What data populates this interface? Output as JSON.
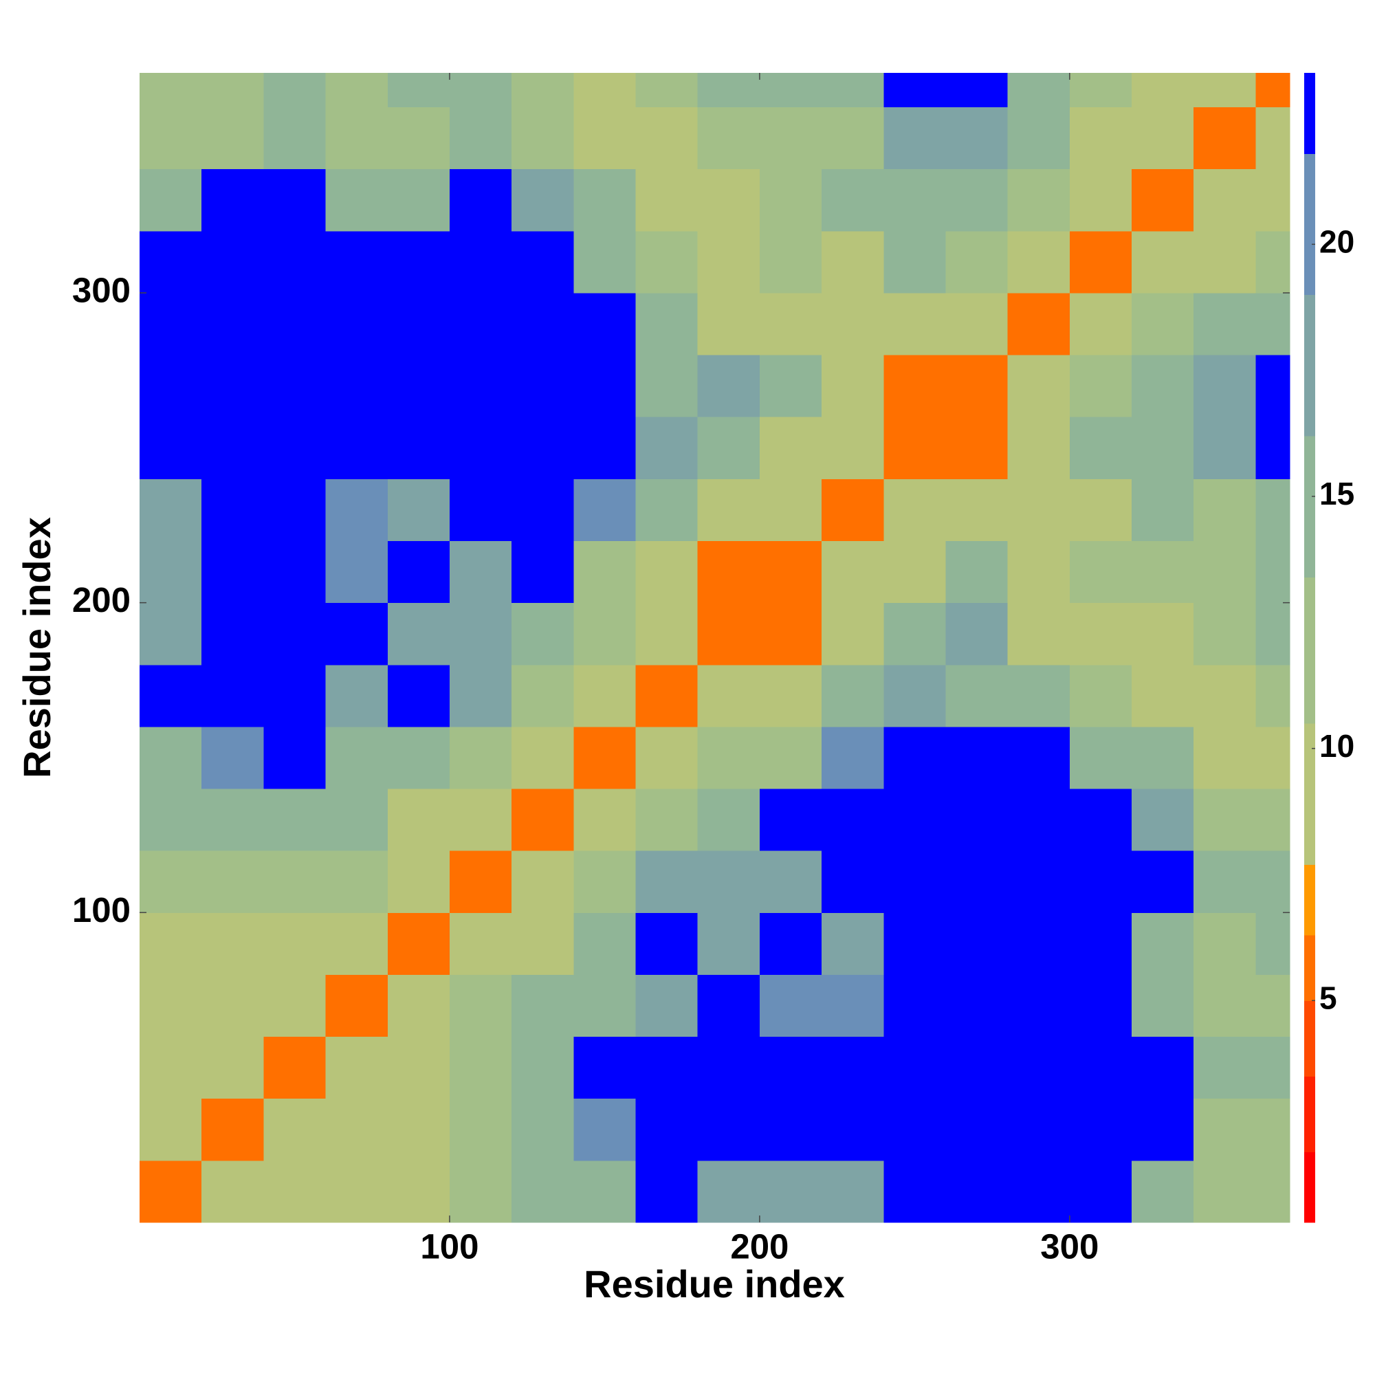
{
  "chart_data": {
    "type": "heatmap",
    "x_label": "Residue index",
    "y_label": "Residue index",
    "xlim": [
      0,
      371
    ],
    "ylim": [
      0,
      371
    ],
    "xticks": [
      100,
      200,
      300
    ],
    "yticks": [
      100,
      200,
      300
    ],
    "xbins": [
      0,
      20,
      40,
      60,
      80,
      100,
      120,
      140,
      160,
      180,
      200,
      220,
      240,
      260,
      280,
      300,
      320,
      340,
      360,
      371
    ],
    "ybins": [
      0,
      20,
      40,
      60,
      80,
      100,
      120,
      140,
      160,
      180,
      200,
      220,
      240,
      260,
      280,
      300,
      320,
      340,
      360,
      371
    ],
    "z": [
      [
        6,
        10,
        10,
        10,
        10,
        12,
        14,
        14,
        23,
        18,
        18,
        18,
        23,
        23,
        23,
        23,
        14,
        12,
        12
      ],
      [
        10,
        6,
        8,
        10,
        10,
        12,
        14,
        20,
        23,
        23,
        23,
        23,
        23,
        23,
        23,
        23,
        23,
        12,
        12
      ],
      [
        10,
        8,
        6,
        8,
        10,
        12,
        16,
        23,
        23,
        23,
        23,
        23,
        23,
        23,
        23,
        23,
        23,
        14,
        14
      ],
      [
        10,
        10,
        8,
        6,
        8,
        12,
        14,
        16,
        18,
        23,
        20,
        20,
        23,
        23,
        23,
        23,
        14,
        12,
        12
      ],
      [
        10,
        10,
        10,
        8,
        6,
        10,
        10,
        14,
        23,
        18,
        23,
        18,
        23,
        23,
        23,
        23,
        16,
        12,
        14
      ],
      [
        12,
        12,
        12,
        12,
        10,
        6,
        8,
        12,
        18,
        18,
        18,
        23,
        23,
        23,
        23,
        23,
        23,
        14,
        14
      ],
      [
        14,
        14,
        16,
        14,
        10,
        8,
        6,
        8,
        12,
        14,
        23,
        23,
        23,
        23,
        23,
        23,
        18,
        12,
        12
      ],
      [
        14,
        20,
        23,
        16,
        14,
        12,
        8,
        6,
        8,
        12,
        12,
        20,
        23,
        23,
        23,
        16,
        14,
        10,
        10
      ],
      [
        23,
        23,
        23,
        18,
        23,
        18,
        12,
        8,
        6,
        8,
        10,
        14,
        18,
        16,
        14,
        12,
        10,
        10,
        12
      ],
      [
        18,
        23,
        23,
        23,
        18,
        18,
        14,
        12,
        8,
        6,
        6,
        10,
        16,
        18,
        10,
        8,
        10,
        12,
        14
      ],
      [
        18,
        23,
        23,
        20,
        23,
        18,
        23,
        12,
        10,
        6,
        6,
        8,
        10,
        14,
        10,
        12,
        12,
        12,
        14
      ],
      [
        18,
        23,
        23,
        20,
        18,
        23,
        23,
        20,
        14,
        10,
        8,
        6,
        8,
        10,
        10,
        10,
        14,
        12,
        16
      ],
      [
        23,
        23,
        23,
        23,
        23,
        23,
        23,
        23,
        18,
        16,
        10,
        8,
        6,
        6,
        10,
        14,
        14,
        18,
        23
      ],
      [
        23,
        23,
        23,
        23,
        23,
        23,
        23,
        23,
        16,
        18,
        14,
        10,
        6,
        6,
        8,
        12,
        14,
        18,
        23
      ],
      [
        23,
        23,
        23,
        23,
        23,
        23,
        23,
        23,
        14,
        10,
        10,
        10,
        10,
        8,
        6,
        8,
        12,
        14,
        16
      ],
      [
        23,
        23,
        23,
        23,
        23,
        23,
        23,
        16,
        12,
        8,
        12,
        10,
        14,
        12,
        8,
        6,
        8,
        10,
        12
      ],
      [
        14,
        23,
        23,
        14,
        16,
        23,
        18,
        14,
        10,
        10,
        12,
        14,
        14,
        14,
        12,
        8,
        6,
        8,
        10
      ],
      [
        12,
        12,
        14,
        12,
        12,
        14,
        12,
        10,
        10,
        12,
        12,
        12,
        18,
        18,
        14,
        10,
        8,
        6,
        8
      ],
      [
        12,
        12,
        14,
        12,
        14,
        14,
        12,
        10,
        12,
        14,
        14,
        16,
        23,
        23,
        16,
        12,
        10,
        8,
        6
      ]
    ],
    "colorbar": {
      "clim": [
        0.6,
        23.4
      ],
      "ticks": [
        5,
        10,
        15,
        20
      ],
      "levels": [
        0.6,
        2,
        3.5,
        5,
        6.3,
        7.7,
        10.5,
        13.4,
        16.2,
        19,
        21.8,
        23.4
      ],
      "colors": [
        "#ff0000",
        "#ff2200",
        "#ff4a00",
        "#ff7000",
        "#ff9a00",
        "#b7c47a",
        "#a3bf88",
        "#90b597",
        "#7fa4a5",
        "#6a8fb8",
        "#0000ff"
      ]
    }
  }
}
